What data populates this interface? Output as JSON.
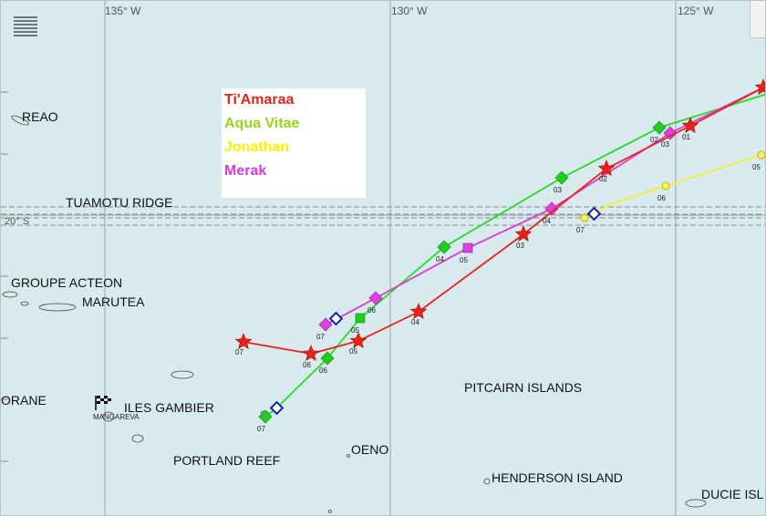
{
  "longitudes": [
    {
      "label": "135° W"
    },
    {
      "label": "130° W"
    },
    {
      "label": "125° W"
    }
  ],
  "latitude": {
    "label": "20° S"
  },
  "places": {
    "reao": "REAO",
    "tuamotu_ridge": "TUAMOTU RIDGE",
    "groupe_acteon": "GROUPE ACTEON",
    "marutea": "MARUTEA",
    "iles_gambier": "ILES GAMBIER",
    "mangareva": "MANGAREVA",
    "orane": "ORANE",
    "portland_reef": "PORTLAND REEF",
    "oeno": "OENO",
    "pitcairn": "PITCAIRN ISLANDS",
    "henderson": "HENDERSON ISLAND",
    "ducie": "DUCIE ISL"
  },
  "legend": {
    "items": [
      {
        "name": "Ti'Amaraa",
        "color": "#e8221a"
      },
      {
        "name": "Aqua Vitae",
        "color": "#9ad31c"
      },
      {
        "name": "Jonathan",
        "color": "#ffee00"
      },
      {
        "name": "Merak",
        "color": "#d93bd6"
      }
    ]
  },
  "tracks": {
    "tiamaraa": {
      "color": "#e8221a",
      "labels": [
        "07",
        "06",
        "05",
        "04",
        "03",
        "02",
        "01"
      ]
    },
    "aquavitae": {
      "color": "#22dd22",
      "labels": [
        "07",
        "06",
        "05",
        "04",
        "03",
        "02"
      ]
    },
    "jonathan": {
      "color": "#f2ee30",
      "labels": [
        "07",
        "06",
        "05"
      ]
    },
    "merak": {
      "color": "#e040e0",
      "labels": [
        "07",
        "06",
        "05",
        "04",
        "03"
      ]
    }
  },
  "icons": {
    "menu": "menu-lines-icon",
    "finish": "checkered-flag-icon"
  }
}
